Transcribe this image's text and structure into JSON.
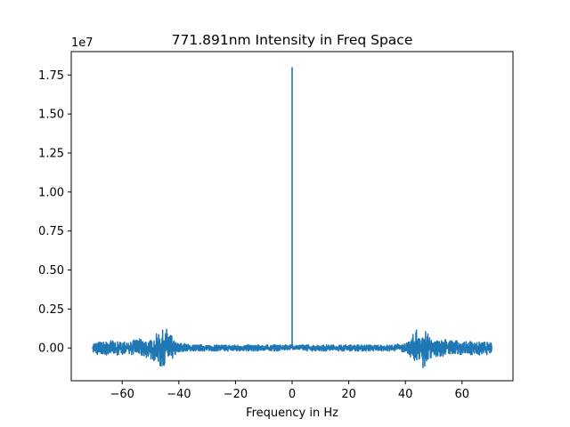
{
  "chart_data": {
    "type": "line",
    "title": "771.891nm Intensity in Freq Space",
    "xlabel": "Frequency in Hz",
    "ylabel": "",
    "y_offset_label": "1e7",
    "xlim": [
      -78,
      78
    ],
    "ylim": [
      -0.21,
      1.9
    ],
    "x_ticks": [
      -60,
      -40,
      -20,
      0,
      20,
      40,
      60
    ],
    "x_tick_labels": [
      "−60",
      "−40",
      "−20",
      "0",
      "20",
      "40",
      "60"
    ],
    "y_ticks": [
      0.0,
      0.25,
      0.5,
      0.75,
      1.0,
      1.25,
      1.5,
      1.75
    ],
    "y_tick_labels": [
      "0.00",
      "0.25",
      "0.50",
      "0.75",
      "1.00",
      "1.25",
      "1.50",
      "1.75"
    ],
    "grid": false,
    "legend": "none",
    "series": [
      {
        "color": "#1f77b4",
        "x": [
          -70.5,
          -68,
          -66,
          -64,
          -62,
          -60,
          -58,
          -56,
          -54,
          -52,
          -50,
          -48,
          -46.5,
          -45,
          -44,
          -43,
          -42.5,
          -41.5,
          -40,
          -38,
          -36,
          -34,
          -30,
          -25,
          -20,
          -15,
          -10,
          -5,
          -1,
          -0.2,
          0,
          0.2,
          1,
          5,
          10,
          15,
          20,
          25,
          30,
          34,
          36,
          38,
          40,
          41.5,
          42.5,
          43,
          44,
          45,
          46.5,
          48,
          50,
          52,
          54,
          56,
          58,
          60,
          62,
          64,
          66,
          68,
          70.5
        ],
        "y_envelope_low": [
          -0.03,
          -0.05,
          -0.05,
          -0.04,
          -0.05,
          -0.04,
          -0.05,
          -0.04,
          -0.05,
          -0.06,
          -0.07,
          -0.09,
          -0.13,
          -0.11,
          -0.09,
          -0.12,
          -0.08,
          -0.05,
          -0.03,
          -0.02,
          -0.02,
          -0.02,
          -0.02,
          -0.02,
          -0.02,
          -0.02,
          -0.02,
          -0.02,
          -0.01,
          -0.01,
          1.8,
          -0.01,
          -0.01,
          -0.02,
          -0.02,
          -0.02,
          -0.02,
          -0.02,
          -0.02,
          -0.02,
          -0.02,
          -0.02,
          -0.03,
          -0.05,
          -0.08,
          -0.12,
          -0.09,
          -0.11,
          -0.13,
          -0.09,
          -0.07,
          -0.06,
          -0.05,
          -0.04,
          -0.05,
          -0.04,
          -0.05,
          -0.04,
          -0.05,
          -0.05,
          -0.03
        ],
        "y_envelope_high": [
          0.03,
          0.04,
          0.04,
          0.05,
          0.04,
          0.04,
          0.05,
          0.05,
          0.06,
          0.05,
          0.05,
          0.09,
          0.12,
          0.11,
          0.13,
          0.1,
          0.08,
          0.04,
          0.03,
          0.03,
          0.02,
          0.02,
          0.02,
          0.02,
          0.02,
          0.02,
          0.02,
          0.02,
          0.02,
          0.02,
          1.8,
          0.02,
          0.02,
          0.02,
          0.02,
          0.02,
          0.02,
          0.02,
          0.02,
          0.02,
          0.02,
          0.03,
          0.03,
          0.04,
          0.08,
          0.1,
          0.13,
          0.11,
          0.12,
          0.09,
          0.05,
          0.05,
          0.06,
          0.05,
          0.05,
          0.04,
          0.04,
          0.05,
          0.04,
          0.04,
          0.03
        ],
        "peak": {
          "x": 0,
          "y": 1.8
        }
      }
    ]
  }
}
